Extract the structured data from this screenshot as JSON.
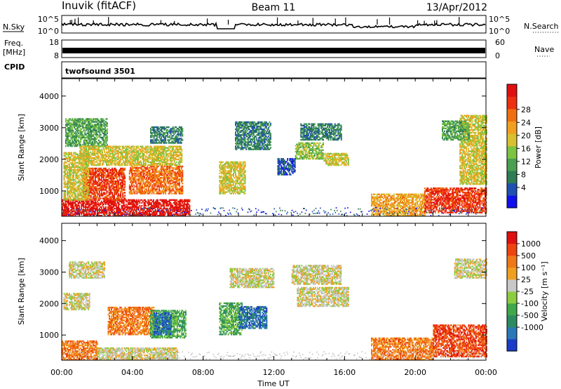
{
  "header": {
    "station": "Inuvik (fitACF)",
    "beam": "Beam 11",
    "date": "13/Apr/2012"
  },
  "top_panels": {
    "nsky_label": "N.Sky",
    "nsky_ticks": [
      "10^5",
      "10^0"
    ],
    "nsearch_label": "N.Search",
    "freq_label_1": "Freq.",
    "freq_label_2": "[MHz]",
    "freq_ticks": [
      "18",
      "8"
    ],
    "nave_label": "Nave",
    "nave_ticks": [
      "60",
      "0"
    ],
    "cpid_label": "CPID",
    "cpid_value": "twofsound 3501"
  },
  "chart_data": [
    {
      "type": "heatmap",
      "name": "Power",
      "ylabel": "Slant Range [km]",
      "yticks": [
        1000,
        2000,
        3000,
        4000
      ],
      "ylim": [
        200,
        4550
      ],
      "xlim": [
        0,
        24
      ],
      "colorbar": {
        "label": "Power [dB]",
        "ticks": [
          "4",
          "8",
          "12",
          "16",
          "20",
          "24",
          "28"
        ],
        "colors": [
          "#1010ee",
          "#2050b0",
          "#2e7d55",
          "#4aa050",
          "#7cc442",
          "#d8c030",
          "#f0a020",
          "#f07010",
          "#ee3010",
          "#e01010"
        ]
      },
      "regions": [
        {
          "t": [
            0.0,
            7.2
          ],
          "r": [
            200,
            700
          ],
          "level": 9
        },
        {
          "t": [
            1.2,
            3.6
          ],
          "r": [
            700,
            1700
          ],
          "level": 8
        },
        {
          "t": [
            3.8,
            6.8
          ],
          "r": [
            900,
            1800
          ],
          "level": 7
        },
        {
          "t": [
            0.1,
            1.5
          ],
          "r": [
            700,
            2200
          ],
          "level": 5
        },
        {
          "t": [
            0.2,
            2.6
          ],
          "r": [
            2400,
            3300
          ],
          "level": 3
        },
        {
          "t": [
            1.0,
            6.8
          ],
          "r": [
            1800,
            2400
          ],
          "level": 5
        },
        {
          "t": [
            5.0,
            6.8
          ],
          "r": [
            2500,
            3000
          ],
          "level": 2
        },
        {
          "t": [
            8.9,
            10.4
          ],
          "r": [
            900,
            1900
          ],
          "level": 5
        },
        {
          "t": [
            9.8,
            11.8
          ],
          "r": [
            2300,
            3200
          ],
          "level": 2
        },
        {
          "t": [
            13.2,
            14.8
          ],
          "r": [
            2000,
            2500
          ],
          "level": 4
        },
        {
          "t": [
            14.8,
            16.2
          ],
          "r": [
            1800,
            2200
          ],
          "level": 5
        },
        {
          "t": [
            13.5,
            15.8
          ],
          "r": [
            2600,
            3100
          ],
          "level": 2
        },
        {
          "t": [
            12.2,
            13.2
          ],
          "r": [
            1500,
            2000
          ],
          "level": 1
        },
        {
          "t": [
            17.5,
            20.5
          ],
          "r": [
            200,
            900
          ],
          "level": 6
        },
        {
          "t": [
            20.5,
            24.0
          ],
          "r": [
            300,
            1100
          ],
          "level": 8
        },
        {
          "t": [
            22.5,
            24.0
          ],
          "r": [
            1200,
            3400
          ],
          "level": 5
        },
        {
          "t": [
            21.5,
            23.0
          ],
          "r": [
            2600,
            3200
          ],
          "level": 3
        }
      ]
    },
    {
      "type": "heatmap",
      "name": "Velocity",
      "ylabel": "Slant Range [km]",
      "xlabel": "Time UT",
      "xticks": [
        "00:00",
        "04:00",
        "08:00",
        "12:00",
        "16:00",
        "20:00",
        "00:00"
      ],
      "yticks": [
        1000,
        2000,
        3000,
        4000
      ],
      "ylim": [
        200,
        4550
      ],
      "xlim": [
        0,
        24
      ],
      "colorbar": {
        "label": "Velocity [m s⁻¹]",
        "ticks": [
          "1000",
          "500",
          "100",
          "25",
          "-25",
          "-100",
          "-500",
          "-1000"
        ],
        "colors": [
          "#1a3cc8",
          "#2a78b8",
          "#2e8a60",
          "#3ea84a",
          "#8ccc40",
          "#c8c8c8",
          "#f0a020",
          "#f07818",
          "#ee4410",
          "#e01010"
        ]
      },
      "regions": [
        {
          "t": [
            0.0,
            2.0
          ],
          "r": [
            200,
            800
          ],
          "level": 7
        },
        {
          "t": [
            2.6,
            5.2
          ],
          "r": [
            1000,
            1900
          ],
          "level": 7
        },
        {
          "t": [
            5.0,
            7.0
          ],
          "r": [
            900,
            1800
          ],
          "level": 3
        },
        {
          "t": [
            5.2,
            6.2
          ],
          "r": [
            1000,
            1700
          ],
          "level": 1
        },
        {
          "t": [
            0.1,
            1.6
          ],
          "r": [
            1800,
            2300
          ],
          "level": 5
        },
        {
          "t": [
            0.4,
            2.4
          ],
          "r": [
            2800,
            3300
          ],
          "level": 5
        },
        {
          "t": [
            2.0,
            6.5
          ],
          "r": [
            200,
            600
          ],
          "level": 5
        },
        {
          "t": [
            8.9,
            10.2
          ],
          "r": [
            1000,
            2000
          ],
          "level": 3
        },
        {
          "t": [
            10.0,
            11.6
          ],
          "r": [
            1200,
            1900
          ],
          "level": 1
        },
        {
          "t": [
            9.5,
            12.0
          ],
          "r": [
            2500,
            3100
          ],
          "level": 5
        },
        {
          "t": [
            13.3,
            16.2
          ],
          "r": [
            1900,
            2500
          ],
          "level": 5
        },
        {
          "t": [
            13.0,
            15.8
          ],
          "r": [
            2600,
            3200
          ],
          "level": 5
        },
        {
          "t": [
            17.5,
            21.0
          ],
          "r": [
            200,
            900
          ],
          "level": 7
        },
        {
          "t": [
            21.0,
            24.0
          ],
          "r": [
            300,
            1300
          ],
          "level": 8
        },
        {
          "t": [
            22.2,
            24.0
          ],
          "r": [
            2800,
            3400
          ],
          "level": 5
        }
      ]
    }
  ]
}
